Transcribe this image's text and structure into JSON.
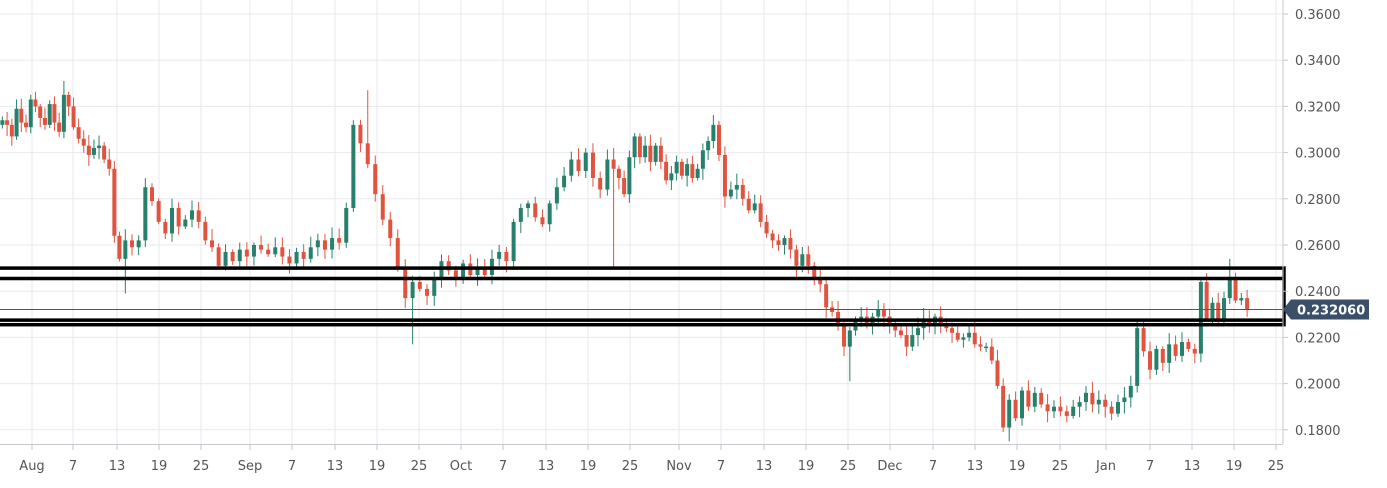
{
  "chart_data": {
    "type": "candlestick",
    "title": "",
    "xlabel": "",
    "ylabel": "",
    "ylim": [
      0.172,
      0.364
    ],
    "y_ticks": [
      "0.3600",
      "0.3400",
      "0.3200",
      "0.3000",
      "0.2800",
      "0.2600",
      "0.2400",
      "0.2200",
      "0.2000",
      "0.1800"
    ],
    "x_ticks": [
      "Aug",
      "7",
      "13",
      "19",
      "25",
      "Sep",
      "7",
      "13",
      "19",
      "25",
      "Oct",
      "7",
      "13",
      "19",
      "25",
      "Nov",
      "7",
      "13",
      "19",
      "25",
      "Dec",
      "7",
      "13",
      "19",
      "25",
      "Jan",
      "7",
      "13",
      "19",
      "25"
    ],
    "last_price": "0.232060",
    "zones": [
      {
        "top": 0.25,
        "bottom": 0.2455
      },
      {
        "top": 0.2275,
        "bottom": 0.2255
      }
    ],
    "colors": {
      "up": "#26806b",
      "down": "#e0533f",
      "grid": "#e9e9ef",
      "price_line": "#3d5a80",
      "price_tag_bg": "#3a4f68",
      "zone_border": "#000000",
      "background": "#ffffff",
      "axis_text": "#555555"
    },
    "segments": [
      [
        0.312,
        0.314,
        0.312,
        0.307,
        0.319,
        0.313,
        0.311,
        0.323,
        0.32,
        0.315,
        0.312,
        0.321,
        0.313,
        0.309,
        0.325,
        0.32
      ],
      [
        0.32,
        0.311,
        0.306,
        0.303,
        0.299,
        0.302,
        0.303,
        0.297,
        0.293,
        0.264,
        0.254
      ],
      [
        0.254,
        0.262,
        0.259,
        0.262,
        0.285,
        0.279,
        0.27,
        0.265,
        0.276,
        0.268,
        0.271,
        0.275,
        0.27,
        0.262,
        0.259,
        0.251
      ],
      [
        0.251,
        0.257,
        0.253,
        0.258,
        0.255,
        0.26,
        0.258,
        0.256,
        0.259,
        0.255,
        0.252,
        0.257,
        0.254,
        0.259,
        0.262,
        0.258,
        0.263,
        0.261,
        0.276,
        0.312,
        0.304
      ],
      [
        0.304,
        0.295,
        0.282,
        0.271,
        0.263,
        0.25,
        0.237
      ],
      [
        0.237,
        0.244,
        0.241,
        0.238,
        0.246,
        0.253,
        0.249,
        0.246,
        0.252,
        0.247,
        0.25,
        0.247,
        0.254,
        0.257,
        0.253,
        0.27,
        0.276,
        0.278,
        0.272,
        0.269,
        0.278,
        0.285,
        0.29,
        0.297,
        0.292,
        0.3,
        0.289,
        0.284,
        0.297
      ],
      [
        0.297,
        0.293,
        0.289,
        0.282,
        0.298,
        0.307,
        0.298,
        0.303,
        0.296,
        0.303,
        0.296,
        0.288,
        0.291,
        0.296,
        0.29,
        0.295,
        0.289,
        0.293,
        0.301,
        0.305,
        0.312
      ],
      [
        0.312,
        0.299,
        0.281,
        0.284,
        0.286,
        0.28,
        0.275,
        0.278,
        0.27,
        0.265,
        0.262,
        0.26,
        0.263,
        0.258,
        0.251,
        0.256,
        0.251,
        0.246,
        0.243,
        0.233,
        0.231,
        0.225,
        0.216
      ],
      [
        0.216,
        0.223,
        0.227,
        0.229,
        0.226,
        0.229,
        0.232,
        0.229,
        0.226,
        0.223,
        0.221,
        0.216,
        0.221,
        0.224,
        0.228,
        0.226,
        0.229,
        0.225,
        0.224,
        0.222,
        0.219,
        0.22,
        0.222,
        0.217,
        0.216,
        0.216,
        0.21,
        0.199,
        0.181
      ],
      [
        0.181,
        0.193,
        0.185,
        0.197,
        0.19,
        0.196,
        0.191,
        0.188,
        0.19,
        0.188,
        0.186,
        0.19,
        0.192,
        0.196,
        0.191,
        0.193,
        0.19,
        0.187,
        0.192,
        0.194,
        0.199,
        0.224,
        0.214,
        0.206,
        0.215,
        0.209,
        0.217,
        0.212,
        0.218,
        0.215,
        0.213
      ],
      [
        0.213,
        0.244,
        0.228,
        0.235,
        0.227,
        0.237,
        0.245,
        0.236,
        0.237,
        0.232
      ]
    ],
    "segment_breaks": [
      0.261,
      0.261,
      0.233,
      0.236,
      0.238,
      0.306,
      0.288,
      0.226,
      0.189,
      0.243
    ]
  }
}
